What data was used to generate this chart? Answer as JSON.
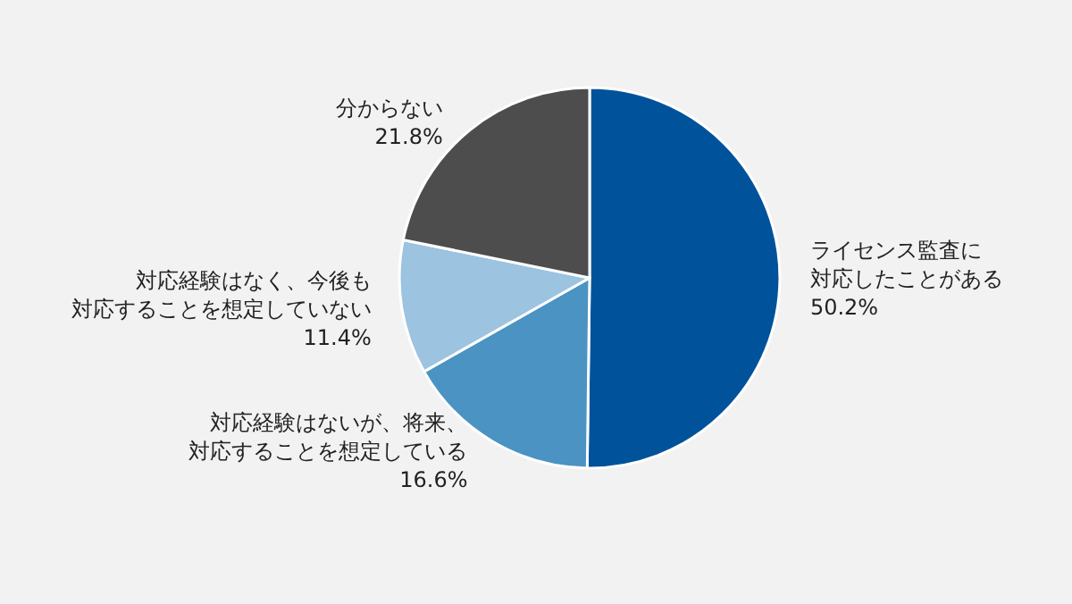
{
  "chart_data": {
    "type": "pie",
    "categories": [
      "ライセンス監査に対応したことがある",
      "対応経験はないが、将来、対応することを想定している",
      "対応経験はなく、今後も対応することを想定していない",
      "分からない"
    ],
    "values": [
      50.2,
      16.6,
      11.4,
      21.8
    ],
    "value_labels": [
      "50.2%",
      "16.6%",
      "11.4%",
      "21.8%"
    ],
    "colors": [
      "#00529b",
      "#4a93c3",
      "#9cc3df",
      "#4d4d4d"
    ],
    "legend": false
  }
}
